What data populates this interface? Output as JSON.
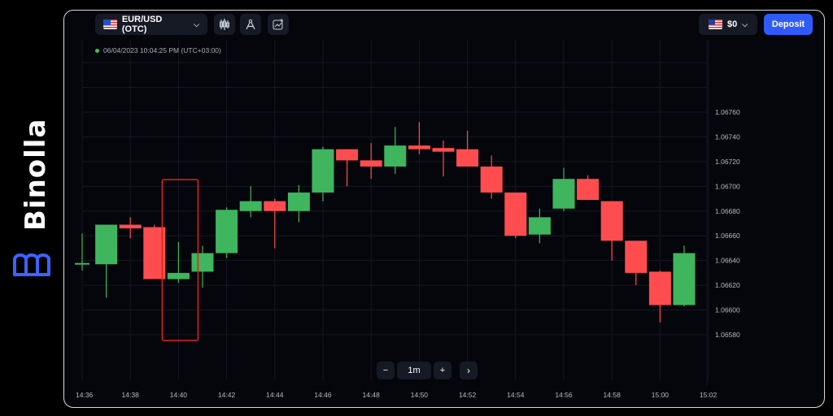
{
  "brand": {
    "name": "Binolla"
  },
  "header": {
    "asset_label": "EUR/USD (OTC)",
    "balance_label": "$0",
    "deposit_label": "Deposit"
  },
  "timestamp": "06/04/2023 10:04:25 PM (UTC+03:00)",
  "timeframe": {
    "minus_label": "−",
    "value": "1m",
    "plus_label": "+",
    "next_label": "›"
  },
  "colors": {
    "up": "#3fb55e",
    "down": "#ff4d4f",
    "accent": "#2e5bff",
    "highlight": "#e02020"
  },
  "chart_data": {
    "type": "candlestick",
    "x_ticks": [
      "14:36",
      "14:38",
      "14:40",
      "14:42",
      "14:44",
      "14:46",
      "14:48",
      "14:50",
      "14:52",
      "14:54",
      "14:56",
      "14:58",
      "15:00",
      "15:02"
    ],
    "y_ticks": [
      "1.06760",
      "1.06740",
      "1.06720",
      "1.06700",
      "1.06680",
      "1.06660",
      "1.06640",
      "1.06620",
      "1.06600",
      "1.06580"
    ],
    "ylim": [
      1.06566,
      1.06776
    ],
    "candles": [
      {
        "t": "14:36",
        "o": 1.06638,
        "h": 1.06662,
        "l": 1.06632,
        "c": 1.06638
      },
      {
        "t": "14:37",
        "o": 1.06637,
        "h": 1.06669,
        "l": 1.0661,
        "c": 1.06669
      },
      {
        "t": "14:38",
        "o": 1.06669,
        "h": 1.06675,
        "l": 1.06658,
        "c": 1.06666
      },
      {
        "t": "14:39",
        "o": 1.06667,
        "h": 1.06669,
        "l": 1.06625,
        "c": 1.06625
      },
      {
        "t": "14:40",
        "o": 1.06625,
        "h": 1.06655,
        "l": 1.06622,
        "c": 1.0663
      },
      {
        "t": "14:41",
        "o": 1.06631,
        "h": 1.06652,
        "l": 1.06618,
        "c": 1.06646
      },
      {
        "t": "14:42",
        "o": 1.06646,
        "h": 1.06683,
        "l": 1.06642,
        "c": 1.06681
      },
      {
        "t": "14:43",
        "o": 1.0668,
        "h": 1.067,
        "l": 1.06675,
        "c": 1.06688
      },
      {
        "t": "14:44",
        "o": 1.06688,
        "h": 1.0669,
        "l": 1.0665,
        "c": 1.0668
      },
      {
        "t": "14:45",
        "o": 1.0668,
        "h": 1.06701,
        "l": 1.06671,
        "c": 1.06695
      },
      {
        "t": "14:46",
        "o": 1.06695,
        "h": 1.06732,
        "l": 1.06688,
        "c": 1.0673
      },
      {
        "t": "14:47",
        "o": 1.0673,
        "h": 1.0673,
        "l": 1.067,
        "c": 1.06721
      },
      {
        "t": "14:48",
        "o": 1.06721,
        "h": 1.06735,
        "l": 1.06706,
        "c": 1.06716
      },
      {
        "t": "14:49",
        "o": 1.06716,
        "h": 1.06748,
        "l": 1.0671,
        "c": 1.06733
      },
      {
        "t": "14:50",
        "o": 1.06733,
        "h": 1.06752,
        "l": 1.06726,
        "c": 1.0673
      },
      {
        "t": "14:51",
        "o": 1.06731,
        "h": 1.06737,
        "l": 1.06708,
        "c": 1.06728
      },
      {
        "t": "14:52",
        "o": 1.0673,
        "h": 1.06745,
        "l": 1.06716,
        "c": 1.06716
      },
      {
        "t": "14:53",
        "o": 1.06716,
        "h": 1.06725,
        "l": 1.0669,
        "c": 1.06695
      },
      {
        "t": "14:54",
        "o": 1.06695,
        "h": 1.06695,
        "l": 1.06658,
        "c": 1.0666
      },
      {
        "t": "14:55",
        "o": 1.06661,
        "h": 1.06682,
        "l": 1.06654,
        "c": 1.06675
      },
      {
        "t": "14:56",
        "o": 1.06682,
        "h": 1.06715,
        "l": 1.0668,
        "c": 1.06706
      },
      {
        "t": "14:57",
        "o": 1.06706,
        "h": 1.06709,
        "l": 1.06689,
        "c": 1.06689
      },
      {
        "t": "14:58",
        "o": 1.06688,
        "h": 1.06688,
        "l": 1.0664,
        "c": 1.06656
      },
      {
        "t": "14:59",
        "o": 1.06656,
        "h": 1.06656,
        "l": 1.0662,
        "c": 1.0663
      },
      {
        "t": "15:00",
        "o": 1.06631,
        "h": 1.06632,
        "l": 1.0659,
        "c": 1.06604
      },
      {
        "t": "15:01",
        "o": 1.06604,
        "h": 1.06652,
        "l": 1.06603,
        "c": 1.06646
      }
    ],
    "highlight_candles": [
      "14:40"
    ]
  }
}
